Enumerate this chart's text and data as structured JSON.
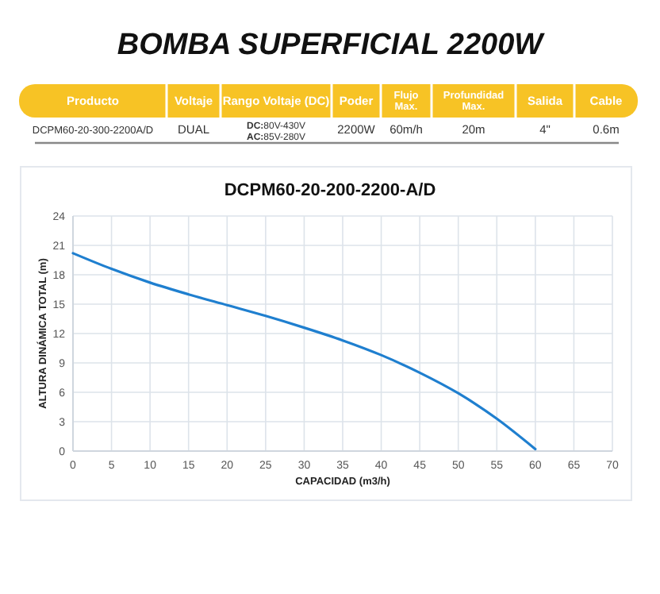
{
  "chart_data": [
    {
      "type": "other",
      "title": "BOMBA SUPERFICIAL 2200W",
      "categories": [
        "Producto",
        "Voltaje",
        "Rango Voltaje (DC)",
        "Poder",
        "Flujo\nMax.",
        "Profundidad\nMax.",
        "Salida",
        "Cable"
      ],
      "cell_labels": [
        [
          "DCPM60-20-300-2200A/D",
          "DUAL",
          "DC:80V-430V\nAC:85V-280V",
          "2200W",
          "60m/h",
          "20m",
          "4\"",
          "0.6m"
        ]
      ]
    },
    {
      "type": "line",
      "title": "DCPM60-20-200-2200-A/D",
      "xlabel": "CAPACIDAD (m3/h)",
      "ylabel": "ALTURA DINÁMICA TOTAL (m)",
      "x": [
        0,
        5,
        10,
        15,
        20,
        25,
        30,
        35,
        40,
        45,
        50,
        55,
        60
      ],
      "series": [
        {
          "color": "#1f7fcf",
          "values": [
            20.2,
            18.6,
            17.2,
            16.0,
            14.9,
            13.8,
            12.6,
            11.3,
            9.8,
            8.0,
            5.9,
            3.3,
            0.2
          ]
        }
      ],
      "xlim": [
        0,
        70
      ],
      "xticks": [
        0,
        5,
        10,
        15,
        20,
        25,
        30,
        35,
        40,
        45,
        50,
        55,
        60,
        65,
        70
      ],
      "ylim": [
        0,
        24
      ],
      "yticks": [
        0,
        3,
        6,
        9,
        12,
        15,
        18,
        21,
        24
      ],
      "grid": true,
      "marker": "none",
      "line_style": "solid"
    }
  ]
}
